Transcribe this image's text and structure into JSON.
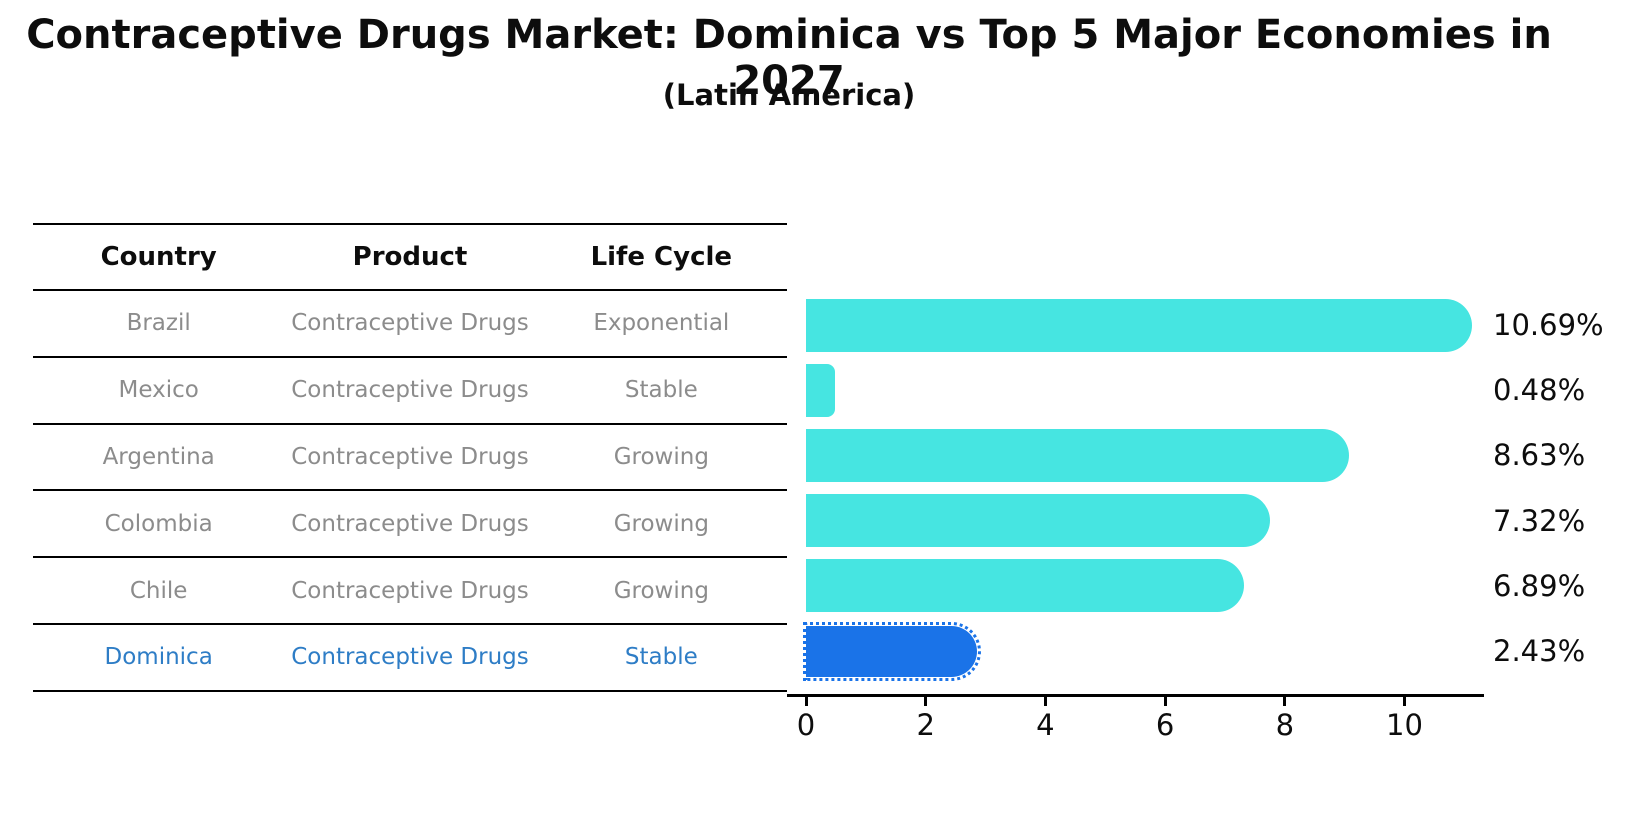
{
  "title": "Contraceptive Drugs Market: Dominica vs Top 5 Major Economies in 2027",
  "subtitle": "(Latin America)",
  "table": {
    "columns": [
      "Country",
      "Product",
      "Life Cycle"
    ],
    "rows": [
      {
        "country": "Brazil",
        "product": "Contraceptive Drugs",
        "life_cycle": "Exponential",
        "highlighted": false
      },
      {
        "country": "Mexico",
        "product": "Contraceptive Drugs",
        "life_cycle": "Stable",
        "highlighted": false
      },
      {
        "country": "Argentina",
        "product": "Contraceptive Drugs",
        "life_cycle": "Growing",
        "highlighted": false
      },
      {
        "country": "Colombia",
        "product": "Contraceptive Drugs",
        "life_cycle": "Growing",
        "highlighted": false
      },
      {
        "country": "Chile",
        "product": "Contraceptive Drugs",
        "life_cycle": "Growing",
        "highlighted": false
      },
      {
        "country": "Dominica",
        "product": "Contraceptive Drugs",
        "life_cycle": "Stable",
        "highlighted": true
      }
    ]
  },
  "chart_data": {
    "type": "bar",
    "orientation": "horizontal",
    "categories": [
      "Brazil",
      "Mexico",
      "Argentina",
      "Colombia",
      "Chile",
      "Dominica"
    ],
    "values": [
      10.69,
      0.48,
      8.63,
      7.32,
      6.89,
      2.43
    ],
    "value_labels": [
      "10.69%",
      "0.48%",
      "8.63%",
      "7.32%",
      "6.89%",
      "2.43%"
    ],
    "x_ticks": [
      "0",
      "2",
      "4",
      "6",
      "8",
      "10"
    ],
    "x_tick_values": [
      0,
      2,
      4,
      6,
      8,
      10
    ],
    "xlim": [
      0,
      11.3
    ],
    "grid": false,
    "legend": "none",
    "highlight_index": 5,
    "bar_color": "#46e5e1",
    "highlight_color": "#1a73e8"
  },
  "colors": {
    "regular_row_text": "#8c8c8c",
    "highlight_row_text": "#2e7dc6",
    "axis": "#000000",
    "title_text": "#0d0d0d",
    "background": "#ffffff"
  }
}
